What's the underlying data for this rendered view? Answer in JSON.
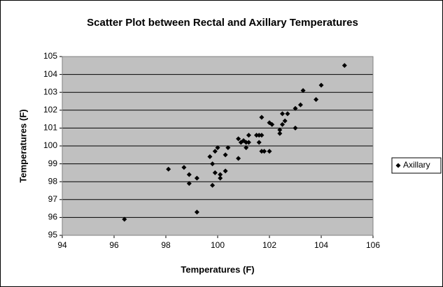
{
  "chart_data": {
    "type": "scatter",
    "title": "Scatter Plot between Rectal and Axillary Temperatures",
    "x_label": "Temperatures (F)",
    "y_label": "Temperatures (F)",
    "xlim": [
      94,
      106
    ],
    "xticks": [
      94,
      96,
      98,
      100,
      102,
      104,
      106
    ],
    "ylim": [
      95,
      105
    ],
    "yticks": [
      95,
      96,
      97,
      98,
      99,
      100,
      101,
      102,
      103,
      104,
      105
    ],
    "grid": true,
    "legend": "right",
    "series": [
      {
        "name": "Axillary",
        "color": "#000000",
        "x": [
          96.4,
          98.1,
          98.7,
          98.9,
          98.9,
          99.2,
          99.2,
          99.7,
          99.8,
          99.8,
          99.9,
          100.0,
          99.9,
          100.1,
          100.1,
          100.3,
          100.3,
          100.4,
          100.8,
          100.8,
          100.9,
          101.0,
          101.1,
          101.1,
          101.2,
          101.2,
          101.5,
          101.6,
          101.6,
          101.7,
          101.7,
          101.8,
          101.7,
          102.0,
          102.0,
          102.1,
          102.4,
          102.4,
          102.5,
          102.5,
          102.6,
          102.7,
          103.0,
          103.0,
          103.2,
          103.3,
          103.8,
          104.0,
          104.9
        ],
        "values": [
          95.9,
          98.7,
          98.8,
          98.4,
          97.9,
          98.2,
          96.3,
          99.4,
          99.0,
          97.8,
          99.7,
          99.9,
          98.5,
          98.4,
          98.2,
          98.6,
          99.5,
          99.9,
          99.3,
          100.4,
          100.2,
          100.3,
          100.2,
          99.9,
          100.6,
          100.2,
          100.6,
          100.2,
          100.6,
          101.6,
          99.7,
          99.7,
          100.6,
          99.7,
          101.3,
          101.2,
          100.9,
          100.7,
          101.8,
          101.2,
          101.4,
          101.8,
          102.1,
          101.0,
          102.3,
          103.1,
          102.6,
          103.4,
          104.5
        ]
      }
    ]
  }
}
